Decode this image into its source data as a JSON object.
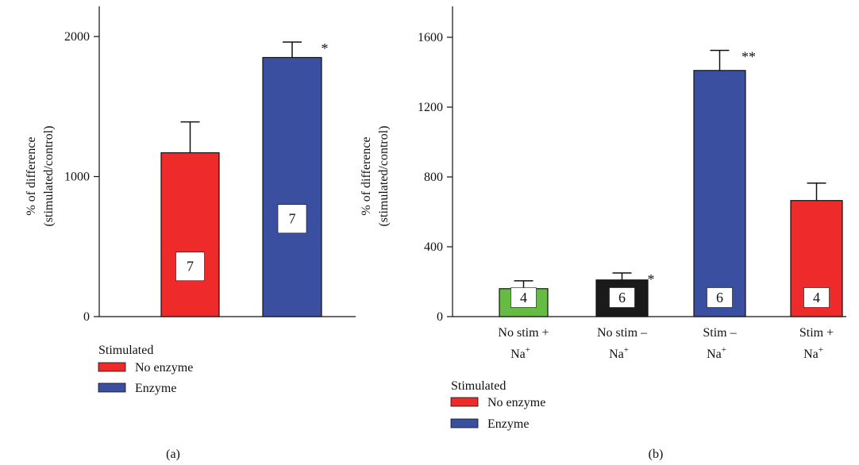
{
  "chart_data": [
    {
      "type": "bar",
      "panel_label": "(a)",
      "ylabel_lines": [
        "% of difference",
        "(stimulated/control)"
      ],
      "ylim": [
        0,
        2000
      ],
      "yticks": [
        0,
        1000,
        2000
      ],
      "categories": [
        "",
        ""
      ],
      "bars": [
        {
          "value": 1170,
          "error": 220,
          "n": "7",
          "color": "#ee2a2a",
          "significance": ""
        },
        {
          "value": 1850,
          "error": 110,
          "n": "7",
          "color": "#3a4fa0",
          "significance": "*"
        }
      ],
      "legend": {
        "title": "Stimulated",
        "placement": "bottom-left",
        "entries": [
          {
            "label": "No enzyme",
            "color": "#ee2a2a"
          },
          {
            "label": "Enzyme",
            "color": "#3a4fa0"
          }
        ]
      }
    },
    {
      "type": "bar",
      "panel_label": "(b)",
      "ylabel_lines": [
        "% of difference",
        "(stimulated/control)"
      ],
      "ylim": [
        0,
        1600
      ],
      "yticks": [
        0,
        400,
        800,
        1200,
        1600
      ],
      "categories": [
        {
          "line1": "No stim +",
          "base": "Na",
          "sup": "+"
        },
        {
          "line1": "No stim –",
          "base": "Na",
          "sup": "+"
        },
        {
          "line1": "Stim –",
          "base": "Na",
          "sup": "+"
        },
        {
          "line1": "Stim +",
          "base": "Na",
          "sup": "+"
        }
      ],
      "bars": [
        {
          "value": 160,
          "error": 45,
          "n": "4",
          "color": "#66bb44",
          "significance": ""
        },
        {
          "value": 210,
          "error": 40,
          "n": "6",
          "color": "#1a1a1a",
          "significance": "*"
        },
        {
          "value": 1410,
          "error": 115,
          "n": "6",
          "color": "#3a4fa0",
          "significance": "**"
        },
        {
          "value": 665,
          "error": 100,
          "n": "4",
          "color": "#ee2a2a",
          "significance": ""
        }
      ],
      "legend": {
        "title": "Stimulated",
        "placement": "bottom-left",
        "entries": [
          {
            "label": "No enzyme",
            "color": "#ee2a2a"
          },
          {
            "label": "Enzyme",
            "color": "#3a4fa0"
          }
        ]
      }
    }
  ]
}
